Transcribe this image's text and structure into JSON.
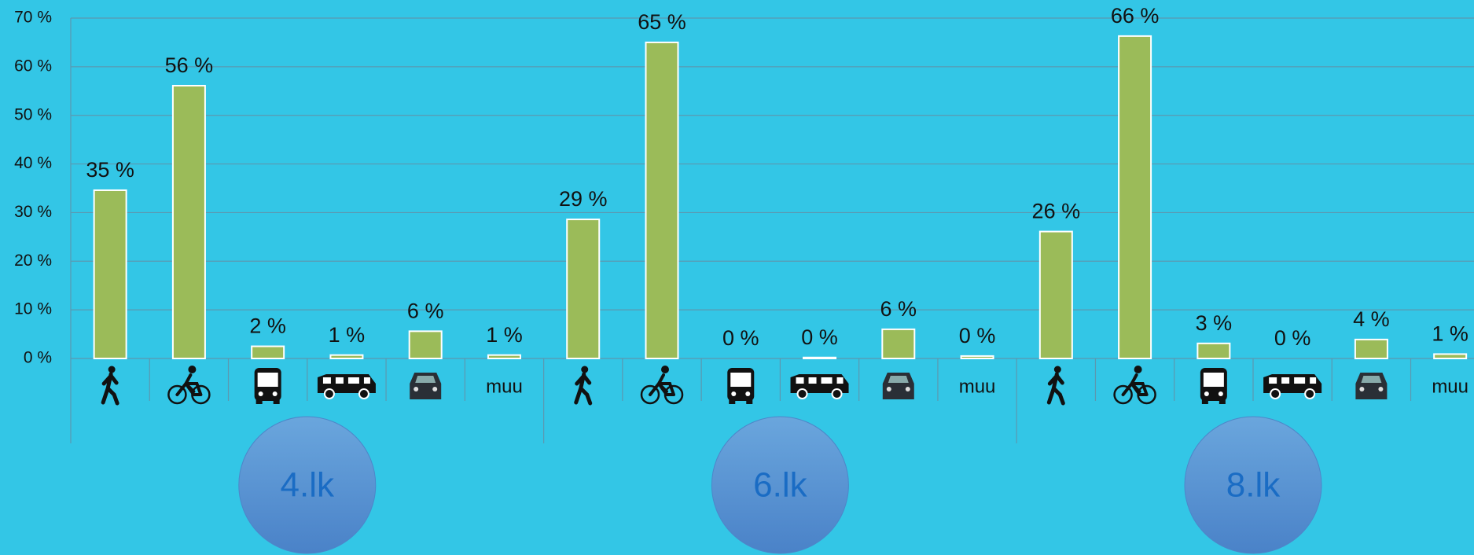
{
  "chart_data": {
    "type": "bar",
    "color": "#9bbb59",
    "ylim": [
      0,
      70
    ],
    "yticks": [
      {
        "value": 0,
        "label": "0 %"
      },
      {
        "value": 10,
        "label": "10 %"
      },
      {
        "value": 20,
        "label": "20 %"
      },
      {
        "value": 30,
        "label": "30 %"
      },
      {
        "value": 40,
        "label": "40 %"
      },
      {
        "value": 50,
        "label": "50 %"
      },
      {
        "value": 60,
        "label": "60 %"
      },
      {
        "value": 70,
        "label": "70 %"
      }
    ],
    "grid": true,
    "groups": [
      {
        "name": "4.lk",
        "categories": [
          null,
          null,
          null,
          null,
          null,
          "muu"
        ],
        "values": [
          34.6,
          56.1,
          2.5,
          0.7,
          5.6,
          0.7
        ],
        "value_labels": [
          "35 %",
          "56 %",
          "2 %",
          "1 %",
          "6 %",
          "1 %"
        ]
      },
      {
        "name": "6.lk",
        "categories": [
          null,
          null,
          null,
          null,
          null,
          "muu"
        ],
        "values": [
          28.6,
          65.0,
          0,
          0.2,
          6.0,
          0.5
        ],
        "value_labels": [
          "29 %",
          "65 %",
          "0 %",
          "0 %",
          "6 %",
          "0 %"
        ]
      },
      {
        "name": "8.lk",
        "categories": [
          null,
          null,
          null,
          null,
          null,
          "muu"
        ],
        "values": [
          26.1,
          66.3,
          3.1,
          0,
          3.9,
          0.9
        ],
        "value_labels": [
          "26 %",
          "66 %",
          "3 %",
          "0 %",
          "4 %",
          "1 %"
        ]
      }
    ]
  }
}
